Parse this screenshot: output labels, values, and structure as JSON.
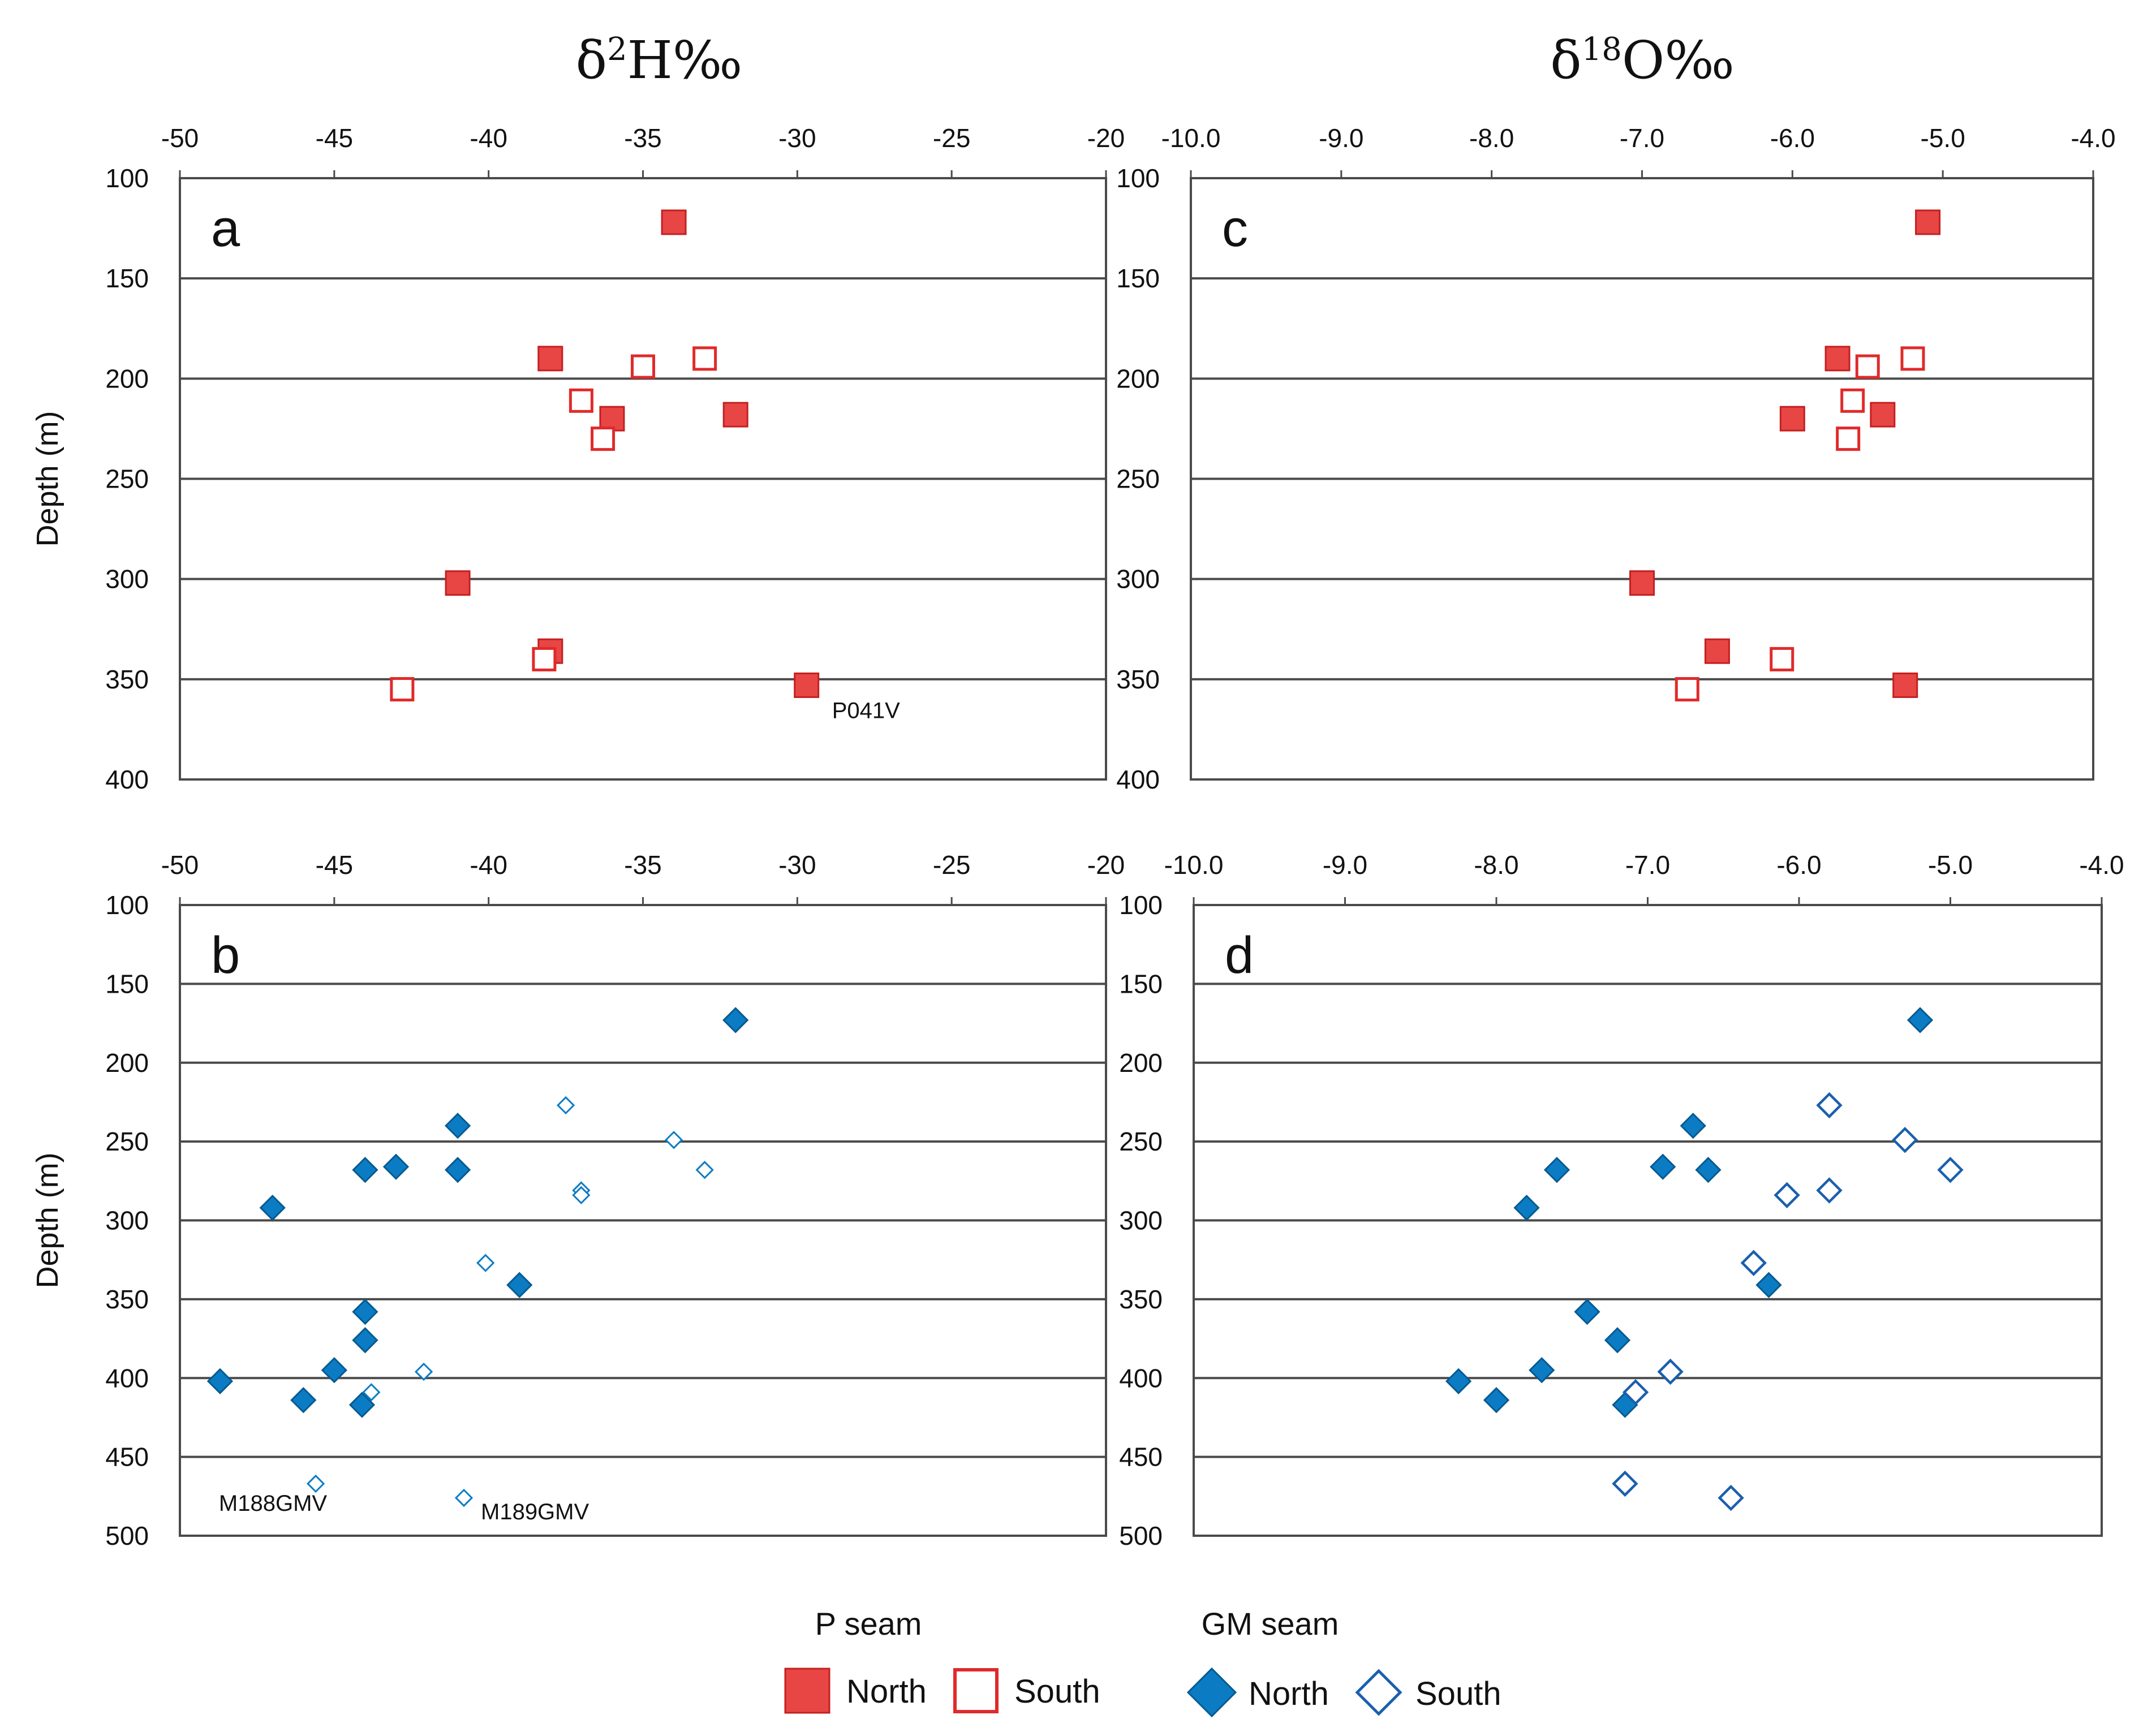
{
  "titles": {
    "left": {
      "base": "δ",
      "sup": "2",
      "rest": "H‰"
    },
    "right": {
      "base": "δ",
      "sup": "18",
      "rest": "O‰"
    }
  },
  "colors": {
    "north_p": "#e84545",
    "south_p": "#e02a2a",
    "north_gm": "#0b7cc4",
    "south_gm": "#1b5fae",
    "grid": "#4a4a4a"
  },
  "legend": {
    "p_seam_title": "P seam",
    "gm_seam_title": "GM seam",
    "north": "North",
    "south": "South"
  },
  "chart_data": [
    {
      "id": "a",
      "type": "scatter",
      "panel_label": "a",
      "xlabel": "δ2H‰",
      "ylabel": "Depth (m)",
      "xlim": [
        -50,
        -20
      ],
      "ylim": [
        100,
        400
      ],
      "y_inverted": true,
      "grid": true,
      "x_ticks": [
        "-50",
        "-45",
        "-40",
        "-35",
        "-30",
        "-25",
        "-20"
      ],
      "y_ticks": [
        "100",
        "150",
        "200",
        "250",
        "300",
        "350",
        "400"
      ],
      "series": [
        {
          "name": "North",
          "seam": "P seam",
          "marker": "filled-square",
          "points": [
            [
              -34,
              122
            ],
            [
              -38,
              190
            ],
            [
              -32,
              218
            ],
            [
              -36,
              220
            ],
            [
              -41,
              302
            ],
            [
              -38,
              336
            ],
            [
              -29.7,
              353
            ]
          ]
        },
        {
          "name": "South",
          "seam": "P seam",
          "marker": "open-square",
          "points": [
            [
              -33,
              190
            ],
            [
              -35,
              194
            ],
            [
              -37,
              211
            ],
            [
              -36.3,
              230
            ],
            [
              -38.2,
              340
            ],
            [
              -42.8,
              355
            ]
          ]
        }
      ],
      "annotations": [
        {
          "text": "P041V",
          "x": -29.7,
          "y": 353
        }
      ]
    },
    {
      "id": "b",
      "type": "scatter",
      "panel_label": "b",
      "xlabel": "δ2H‰",
      "ylabel": "Depth (m)",
      "xlim": [
        -50,
        -20
      ],
      "ylim": [
        100,
        500
      ],
      "y_inverted": true,
      "grid": true,
      "x_ticks": [
        "-50",
        "-45",
        "-40",
        "-35",
        "-30",
        "-25",
        "-20"
      ],
      "y_ticks": [
        "100",
        "150",
        "200",
        "250",
        "300",
        "350",
        "400",
        "450",
        "500"
      ],
      "series": [
        {
          "name": "North",
          "seam": "GM seam",
          "marker": "filled-diamond",
          "points": [
            [
              -32,
              173
            ],
            [
              -41,
              240
            ],
            [
              -43,
              266
            ],
            [
              -44,
              268
            ],
            [
              -41,
              268
            ],
            [
              -47,
              292
            ],
            [
              -39,
              341
            ],
            [
              -44,
              358
            ],
            [
              -44,
              376
            ],
            [
              -45,
              395
            ],
            [
              -48.7,
              402
            ],
            [
              -46,
              414
            ],
            [
              -44.1,
              417
            ]
          ]
        },
        {
          "name": "South",
          "seam": "GM seam",
          "marker": "open-diamond-small",
          "points": [
            [
              -37.5,
              227
            ],
            [
              -34,
              249
            ],
            [
              -33,
              268
            ],
            [
              -37,
              281
            ],
            [
              -37,
              284
            ],
            [
              -40.1,
              327
            ],
            [
              -42.1,
              396
            ],
            [
              -43.8,
              409
            ],
            [
              -45.6,
              467
            ],
            [
              -40.8,
              476
            ]
          ]
        }
      ],
      "annotations": [
        {
          "text": "M188GMV",
          "x": -45.6,
          "y": 467
        },
        {
          "text": "M189GMV",
          "x": -40.8,
          "y": 476
        }
      ]
    },
    {
      "id": "c",
      "type": "scatter",
      "panel_label": "c",
      "xlabel": "δ18O‰",
      "ylabel": "Depth (m)",
      "xlim": [
        -10,
        -4
      ],
      "ylim": [
        100,
        400
      ],
      "y_inverted": true,
      "grid": true,
      "x_ticks": [
        "-10.0",
        "-9.0",
        "-8.0",
        "-7.0",
        "-6.0",
        "-5.0",
        "-4.0"
      ],
      "y_ticks": [
        "100",
        "150",
        "200",
        "250",
        "300",
        "350",
        "400"
      ],
      "series": [
        {
          "name": "North",
          "seam": "P seam",
          "marker": "filled-square",
          "points": [
            [
              -5.1,
              122
            ],
            [
              -5.7,
              190
            ],
            [
              -5.4,
              218
            ],
            [
              -6.0,
              220
            ],
            [
              -7.0,
              302
            ],
            [
              -6.5,
              336
            ],
            [
              -5.25,
              353
            ]
          ]
        },
        {
          "name": "South",
          "seam": "P seam",
          "marker": "open-square",
          "points": [
            [
              -5.2,
              190
            ],
            [
              -5.5,
              194
            ],
            [
              -5.6,
              211
            ],
            [
              -5.63,
              230
            ],
            [
              -6.07,
              340
            ],
            [
              -6.7,
              355
            ]
          ]
        }
      ]
    },
    {
      "id": "d",
      "type": "scatter",
      "panel_label": "d",
      "xlabel": "δ18O‰",
      "ylabel": "Depth (m)",
      "xlim": [
        -10,
        -4
      ],
      "ylim": [
        100,
        500
      ],
      "y_inverted": true,
      "grid": true,
      "x_ticks": [
        "-10.0",
        "-9.0",
        "-8.0",
        "-7.0",
        "-6.0",
        "-5.0",
        "-4.0"
      ],
      "y_ticks": [
        "100",
        "150",
        "200",
        "250",
        "300",
        "350",
        "400",
        "450",
        "500"
      ],
      "series": [
        {
          "name": "North",
          "seam": "GM seam",
          "marker": "filled-diamond",
          "points": [
            [
              -5.2,
              173
            ],
            [
              -6.7,
              240
            ],
            [
              -6.9,
              266
            ],
            [
              -6.6,
              268
            ],
            [
              -7.6,
              268
            ],
            [
              -7.8,
              292
            ],
            [
              -6.2,
              341
            ],
            [
              -7.4,
              358
            ],
            [
              -7.2,
              376
            ],
            [
              -7.7,
              395
            ],
            [
              -8.25,
              402
            ],
            [
              -8.0,
              414
            ],
            [
              -7.15,
              417
            ]
          ]
        },
        {
          "name": "South",
          "seam": "GM seam",
          "marker": "open-diamond",
          "points": [
            [
              -5.8,
              227
            ],
            [
              -5.3,
              249
            ],
            [
              -5.0,
              268
            ],
            [
              -5.8,
              281
            ],
            [
              -6.08,
              284
            ],
            [
              -6.3,
              327
            ],
            [
              -6.85,
              396
            ],
            [
              -7.08,
              409
            ],
            [
              -7.15,
              467
            ],
            [
              -6.45,
              476
            ]
          ]
        }
      ]
    }
  ]
}
